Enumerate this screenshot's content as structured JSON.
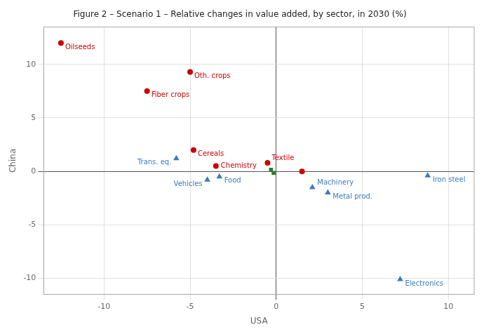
{
  "chart_data": {
    "type": "scatter",
    "title": "Figure 2 – Scenario 1 – Relative changes in value added, by sector, in 2030 (%)",
    "x_label": "USA",
    "y_label": "China",
    "xlim": [
      -13.5,
      11.5
    ],
    "ylim": [
      -11.5,
      13.5
    ],
    "xticks": [
      -10,
      -5,
      0,
      5,
      10
    ],
    "yticks": [
      -10,
      -5,
      0,
      5,
      10
    ],
    "grid": true,
    "series": [
      {
        "color": "#cc0000",
        "marker": "circle",
        "x": [
          -12.5,
          -7.5,
          -5.0,
          -4.8,
          -3.5,
          -0.5,
          1.5
        ],
        "values": [
          12.0,
          7.5,
          9.3,
          2.0,
          0.5,
          0.8,
          0.0
        ],
        "labels": [
          "Oilseeds",
          "Fiber crops",
          "Oth. crops",
          "Cereals",
          "Chemistry",
          "Textile",
          null
        ]
      },
      {
        "color": "#3b7abf",
        "marker": "triangle",
        "x": [
          -5.8,
          -3.3,
          -4.0,
          2.1,
          3.0,
          8.8,
          7.2
        ],
        "values": [
          1.2,
          -0.5,
          -0.8,
          -1.5,
          -2.0,
          -0.4,
          -10.1
        ],
        "labels": [
          "Trans. eq.",
          "Food",
          "Vehicles",
          "Machinery",
          "Metal prod.",
          "Iron steel",
          "Electronics"
        ]
      },
      {
        "color": "#2d7d2d",
        "marker": "square",
        "x": [
          -0.3,
          -0.15
        ],
        "values": [
          0.15,
          -0.15
        ],
        "labels": [
          null,
          null
        ]
      }
    ]
  }
}
